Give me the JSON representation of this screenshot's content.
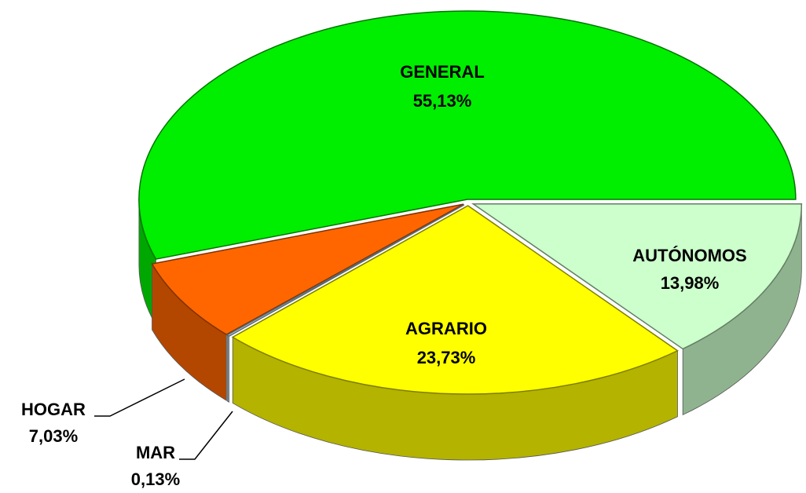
{
  "chart_data": {
    "type": "pie",
    "categories": [
      "GENERAL",
      "HOGAR",
      "MAR",
      "AGRARIO",
      "AUTÓNOMOS"
    ],
    "values": [
      55.13,
      7.03,
      0.13,
      23.73,
      13.98
    ],
    "value_labels": [
      "55,13%",
      "7,03%",
      "0,13%",
      "23,73%",
      "13,98%"
    ],
    "colors": [
      "#00ee00",
      "#ff6600",
      "#b8d4e0",
      "#ffff00",
      "#ccffcc"
    ]
  }
}
